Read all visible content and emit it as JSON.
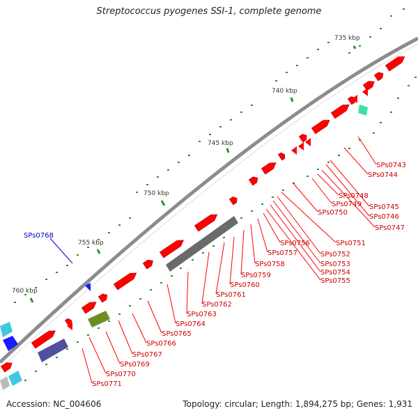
{
  "title": "Streptococcus pyogenes SSI-1, complete genome",
  "footer": {
    "accession": "Accession: NC_004606",
    "summary": "Topology: circular; Length: 1,894,275 bp; Genes: 1,931"
  },
  "colors": {
    "gene_forward": "#ff0000",
    "backbone": "#8c8c8c",
    "ticks": "#2f8f2f",
    "label_line": "#ff0000",
    "label_text": "#cc0000",
    "highlight_label": "#0000cc"
  },
  "ruler": {
    "labels": [
      "735 kbp",
      "740 kbp",
      "745 kbp",
      "750 kbp",
      "755 kbp",
      "760 kbp"
    ]
  },
  "gene_labels": [
    "SPs0743",
    "SPs0744",
    "SPs0745",
    "SPs0746",
    "SPs0747",
    "SPs0748",
    "SPs0749",
    "SPs0750",
    "SPs0751",
    "SPs0752",
    "SPs0753",
    "SPs0754",
    "SPs0755",
    "SPs0756",
    "SPs0757",
    "SPs0758",
    "SPs0759",
    "SPs0760",
    "SPs0761",
    "SPs0762",
    "SPs0763",
    "SPs0764",
    "SPs0765",
    "SPs0766",
    "SPs0767",
    "SPs0769",
    "SPs0770",
    "SPs0771"
  ],
  "highlight_label": "SPs0768"
}
